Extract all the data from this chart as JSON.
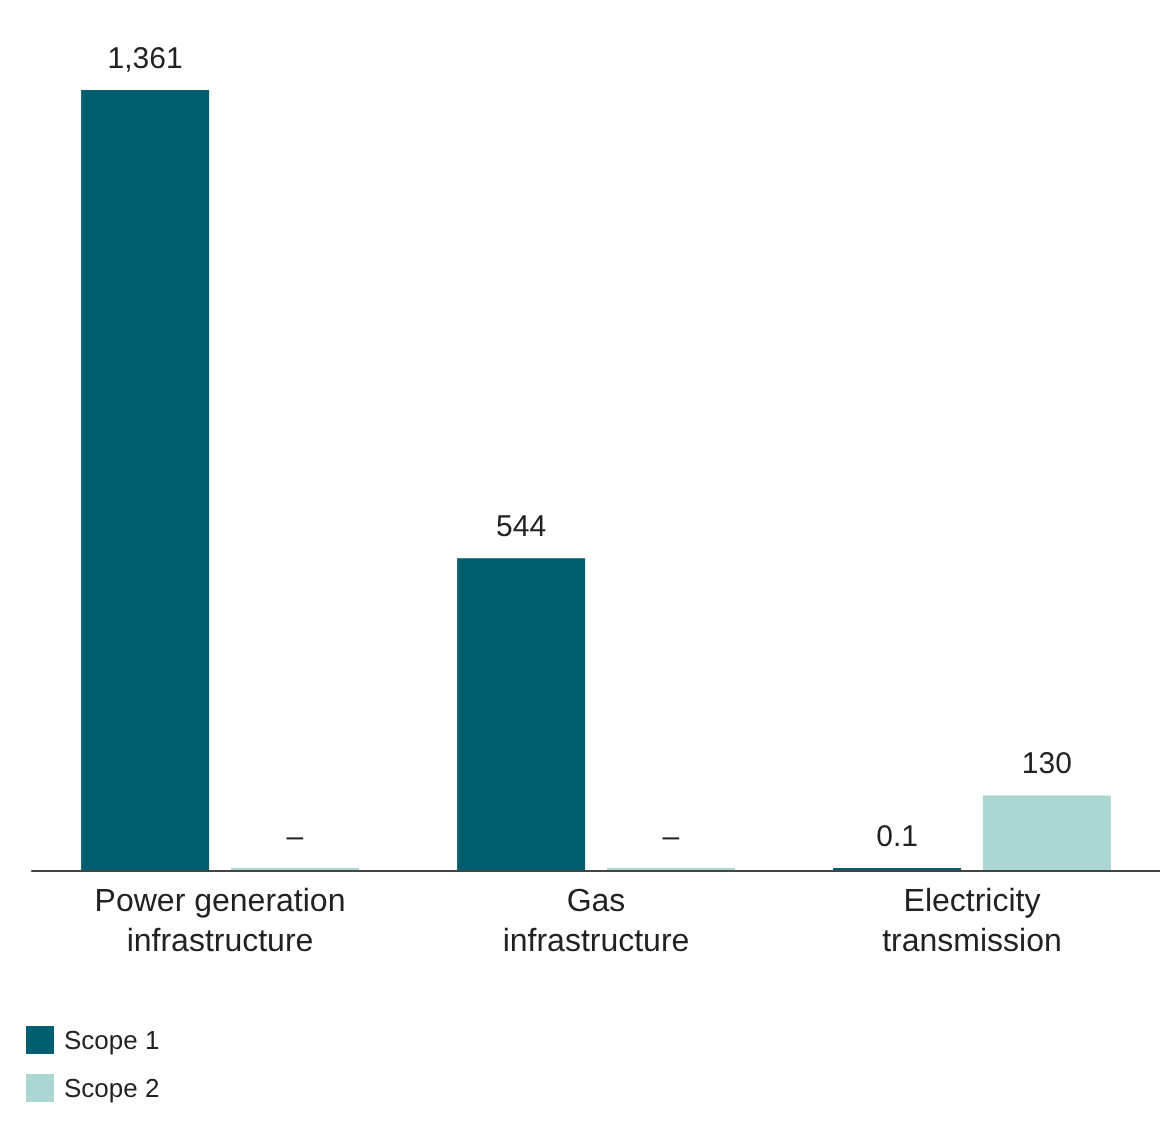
{
  "chart_data": {
    "type": "bar",
    "categories": [
      "Power generation infrastructure",
      "Gas infrastructure",
      "Electricity transmission"
    ],
    "series": [
      {
        "name": "Scope 1",
        "color": "#005f6e",
        "values": [
          1361,
          544,
          0.1
        ],
        "value_labels": [
          "1,361",
          "544",
          "0.1"
        ]
      },
      {
        "name": "Scope 2",
        "color": "#acd6d2",
        "values": [
          0,
          0,
          130
        ],
        "value_labels": [
          "–",
          "–",
          "130"
        ]
      }
    ],
    "legend": "bottom left",
    "grid": false
  }
}
